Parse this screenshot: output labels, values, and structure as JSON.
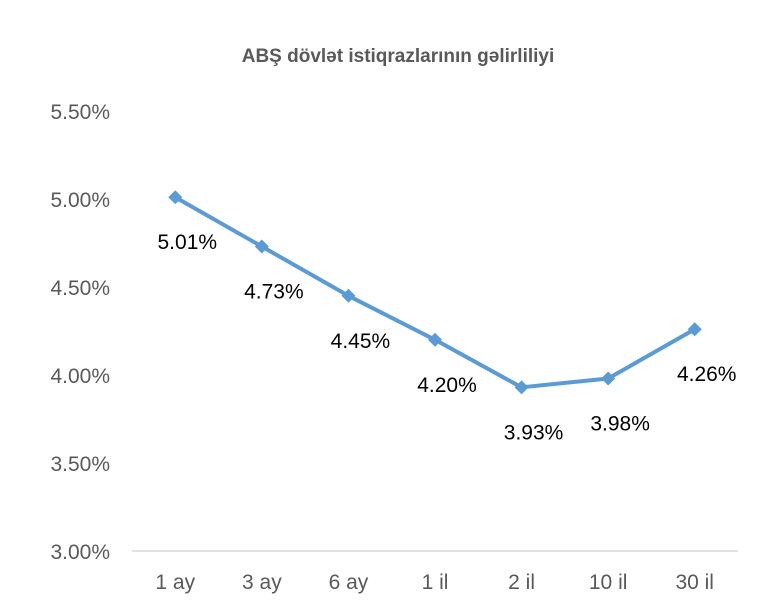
{
  "chart_data": {
    "type": "line",
    "title": "ABŞ dövlət istiqrazlarının gəlirliliyi",
    "xlabel": "",
    "ylabel": "",
    "categories": [
      "1 ay",
      "3 ay",
      "6 ay",
      "1 il",
      "2 il",
      "10 il",
      "30 il"
    ],
    "series": [
      {
        "values": [
          5.01,
          4.73,
          4.45,
          4.2,
          3.93,
          3.98,
          4.26
        ],
        "labels": [
          "5.01%",
          "4.73%",
          "4.45%",
          "4.20%",
          "3.93%",
          "3.98%",
          "4.26%"
        ]
      }
    ],
    "ylim": [
      3.0,
      5.5
    ],
    "yticks": [
      3.0,
      3.5,
      4.0,
      4.5,
      5.0,
      5.5
    ],
    "ytick_labels": [
      "3.00%",
      "3.50%",
      "4.00%",
      "4.50%",
      "5.00%",
      "5.50%"
    ],
    "grid": false,
    "marker": "diamond",
    "colors": {
      "line": "#5B9BD5",
      "axis": "#D9D9D9"
    }
  }
}
